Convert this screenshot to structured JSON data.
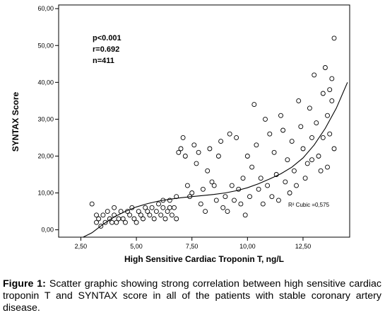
{
  "chart_data": {
    "type": "scatter",
    "xlabel": "High Sensitive Cardiac Troponin T, ng/L",
    "ylabel": "SYNTAX Score",
    "xlim": [
      1.5,
      14.6
    ],
    "ylim": [
      -2,
      61
    ],
    "x_ticks": [
      "2,50",
      "5,00",
      "7,50",
      "10,00",
      "12,50"
    ],
    "x_tick_values": [
      2.5,
      5,
      7.5,
      10,
      12.5
    ],
    "y_ticks": [
      "0,00",
      "10,00",
      "20,00",
      "30,00",
      "40,00",
      "50,00",
      "60,00"
    ],
    "y_tick_values": [
      0,
      10,
      20,
      30,
      40,
      50,
      60
    ],
    "grid": false,
    "stats": [
      "p<0.001",
      "r=0.692",
      "n=411"
    ],
    "fit_label": "R² Cubic =0,575",
    "fit_curve": {
      "x": [
        2.6,
        3.0,
        3.5,
        4.0,
        4.5,
        5.0,
        5.5,
        6.0,
        6.5,
        7.0,
        7.5,
        8.0,
        8.5,
        9.0,
        9.5,
        10.0,
        10.5,
        11.0,
        11.5,
        12.0,
        12.5,
        13.0,
        13.5,
        14.0,
        14.5
      ],
      "y": [
        -3,
        -0.8,
        1.5,
        3.5,
        5.0,
        6.2,
        7.1,
        7.8,
        8.3,
        8.7,
        9.0,
        9.3,
        9.6,
        10.0,
        10.6,
        11.4,
        12.5,
        13.8,
        15.2,
        17.0,
        19.5,
        23.0,
        27.5,
        33.0,
        40.0
      ]
    },
    "points": [
      [
        3.0,
        7
      ],
      [
        3.2,
        2
      ],
      [
        3.2,
        4
      ],
      [
        3.3,
        3
      ],
      [
        3.4,
        1
      ],
      [
        3.5,
        4
      ],
      [
        3.6,
        2
      ],
      [
        3.7,
        5
      ],
      [
        3.8,
        3
      ],
      [
        3.9,
        2
      ],
      [
        4.0,
        4
      ],
      [
        4.0,
        6
      ],
      [
        4.1,
        2
      ],
      [
        4.2,
        3
      ],
      [
        4.3,
        5
      ],
      [
        4.4,
        3
      ],
      [
        4.5,
        2
      ],
      [
        4.6,
        5
      ],
      [
        4.7,
        4
      ],
      [
        4.8,
        6
      ],
      [
        4.9,
        3
      ],
      [
        5.0,
        2
      ],
      [
        5.1,
        5
      ],
      [
        5.2,
        4
      ],
      [
        5.3,
        3
      ],
      [
        5.4,
        6
      ],
      [
        5.5,
        5
      ],
      [
        5.6,
        4
      ],
      [
        5.7,
        6
      ],
      [
        5.8,
        3
      ],
      [
        5.9,
        5
      ],
      [
        6.0,
        7
      ],
      [
        6.1,
        4
      ],
      [
        6.2,
        6
      ],
      [
        6.3,
        3
      ],
      [
        6.4,
        5
      ],
      [
        6.5,
        8
      ],
      [
        6.6,
        4
      ],
      [
        6.7,
        6
      ],
      [
        6.8,
        3
      ],
      [
        6.2,
        8
      ],
      [
        6.5,
        6
      ],
      [
        6.8,
        9
      ],
      [
        6.9,
        21
      ],
      [
        7.0,
        22
      ],
      [
        7.1,
        25
      ],
      [
        7.2,
        20
      ],
      [
        7.3,
        12
      ],
      [
        7.4,
        9
      ],
      [
        7.5,
        10
      ],
      [
        7.6,
        23
      ],
      [
        7.7,
        18
      ],
      [
        7.8,
        21
      ],
      [
        7.9,
        7
      ],
      [
        8.0,
        11
      ],
      [
        8.1,
        5
      ],
      [
        8.2,
        16
      ],
      [
        8.3,
        22
      ],
      [
        8.4,
        13
      ],
      [
        8.5,
        12
      ],
      [
        8.6,
        8
      ],
      [
        8.7,
        20
      ],
      [
        8.8,
        24
      ],
      [
        8.9,
        6
      ],
      [
        9.0,
        9
      ],
      [
        9.1,
        5
      ],
      [
        9.2,
        26
      ],
      [
        9.3,
        12
      ],
      [
        9.4,
        8
      ],
      [
        9.5,
        25
      ],
      [
        9.6,
        11
      ],
      [
        9.7,
        7
      ],
      [
        9.8,
        14
      ],
      [
        9.9,
        4
      ],
      [
        10.0,
        20
      ],
      [
        10.1,
        9
      ],
      [
        10.2,
        17
      ],
      [
        10.3,
        34
      ],
      [
        10.4,
        23
      ],
      [
        10.5,
        11
      ],
      [
        10.6,
        14
      ],
      [
        10.7,
        7
      ],
      [
        10.8,
        30
      ],
      [
        10.9,
        12
      ],
      [
        11.0,
        26
      ],
      [
        11.1,
        9
      ],
      [
        11.2,
        21
      ],
      [
        11.3,
        15
      ],
      [
        11.4,
        8
      ],
      [
        11.5,
        31
      ],
      [
        11.6,
        27
      ],
      [
        11.7,
        13
      ],
      [
        11.8,
        19
      ],
      [
        11.9,
        10
      ],
      [
        12.0,
        24
      ],
      [
        12.1,
        16
      ],
      [
        12.2,
        12
      ],
      [
        12.3,
        35
      ],
      [
        12.4,
        28
      ],
      [
        12.5,
        22
      ],
      [
        12.6,
        14
      ],
      [
        12.7,
        18
      ],
      [
        12.8,
        33
      ],
      [
        12.9,
        25
      ],
      [
        13.0,
        42
      ],
      [
        13.1,
        29
      ],
      [
        13.2,
        20
      ],
      [
        13.3,
        16
      ],
      [
        13.4,
        37
      ],
      [
        13.5,
        44
      ],
      [
        13.6,
        31
      ],
      [
        13.7,
        26
      ],
      [
        13.8,
        41
      ],
      [
        13.9,
        52
      ],
      [
        13.7,
        38
      ],
      [
        13.8,
        35
      ],
      [
        13.4,
        25
      ],
      [
        13.6,
        17
      ],
      [
        13.9,
        22
      ],
      [
        12.9,
        19
      ]
    ]
  },
  "caption": {
    "label": "Figure 1:",
    "text": " Scatter graphic showing strong correlation between high sensitive cardiac troponin T and SYNTAX score in all of the patients with stable coronary artery disease."
  }
}
